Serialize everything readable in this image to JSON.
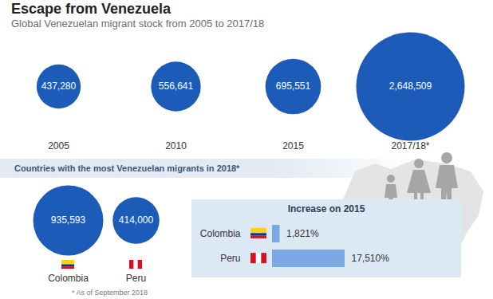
{
  "footnote": "* As of September 2018",
  "chart_data": [
    {
      "type": "bubble",
      "title": "Escape from Venezuela",
      "subtitle": "Global Venezuelan migrant stock from 2005 to 2017/18",
      "categories": [
        "2005",
        "2010",
        "2015",
        "2017/18*"
      ],
      "values": [
        437280,
        556641,
        695551,
        2648509
      ],
      "value_labels": [
        "437,280",
        "556,641",
        "695,551",
        "2,648,509"
      ],
      "color": "#1c5cb8",
      "data_labels": true
    },
    {
      "type": "bubble",
      "title": "Countries with the most Venezuelan migrants in 2018*",
      "categories": [
        "Colombia",
        "Peru"
      ],
      "values": [
        935593,
        414000
      ],
      "value_labels": [
        "935,593",
        "414,000"
      ],
      "color": "#1c5cb8",
      "data_labels": true
    },
    {
      "type": "bar",
      "orientation": "horizontal",
      "title": "Increase on 2015",
      "categories": [
        "Colombia",
        "Peru"
      ],
      "values": [
        1821,
        17510
      ],
      "value_labels": [
        "1,821%",
        "17,510%"
      ],
      "color": "#7aa8e2",
      "data_labels": true,
      "tick_labels": "y"
    }
  ]
}
